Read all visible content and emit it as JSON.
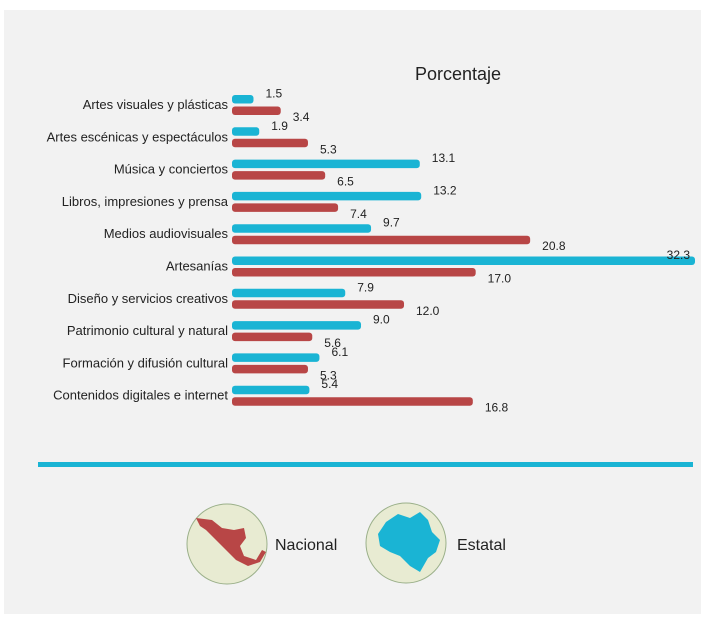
{
  "chart_data": {
    "type": "bar",
    "title": "Porcentaje",
    "orientation": "horizontal",
    "categories": [
      "Artes visuales y plásticas",
      "Artes escénicas y espectáculos",
      "Música y conciertos",
      "Libros, impresiones y prensa",
      "Medios audiovisuales",
      "Artesanías",
      "Diseño y servicios creativos",
      "Patrimonio cultural y natural",
      "Formación y difusión cultural",
      "Contenidos digitales e internet"
    ],
    "series": [
      {
        "name": "Estatal",
        "color": "#1ab4d4",
        "values": [
          1.5,
          1.9,
          13.1,
          13.2,
          9.7,
          32.3,
          7.9,
          9.0,
          6.1,
          5.4
        ],
        "labels": [
          "1.5",
          "1.9",
          "13.1",
          "13.2",
          "9.7",
          "32.3",
          "7.9",
          "9.0",
          "6.1",
          "5.4"
        ]
      },
      {
        "name": "Nacional",
        "color": "#b84646",
        "values": [
          3.4,
          5.3,
          6.5,
          7.4,
          20.8,
          17.0,
          12.0,
          5.6,
          5.3,
          16.8
        ],
        "labels": [
          "3.4",
          "5.3",
          "6.5",
          "7.4",
          "20.8",
          "17.0",
          "12.0",
          "5.6",
          "5.3",
          "16.8"
        ]
      }
    ],
    "xlim": [
      0,
      32.3
    ],
    "grid": false,
    "legend_position": "bottom"
  },
  "legend": {
    "nacional": {
      "label": "Nacional",
      "icon": "mexico-map-icon",
      "color": "#b84646"
    },
    "estatal": {
      "label": "Estatal",
      "icon": "state-map-icon",
      "color": "#1ab4d4"
    }
  },
  "colors": {
    "background": "#f2f2f2",
    "divider": "#1ab4d4",
    "icon_circle": "#e8ebd2"
  }
}
